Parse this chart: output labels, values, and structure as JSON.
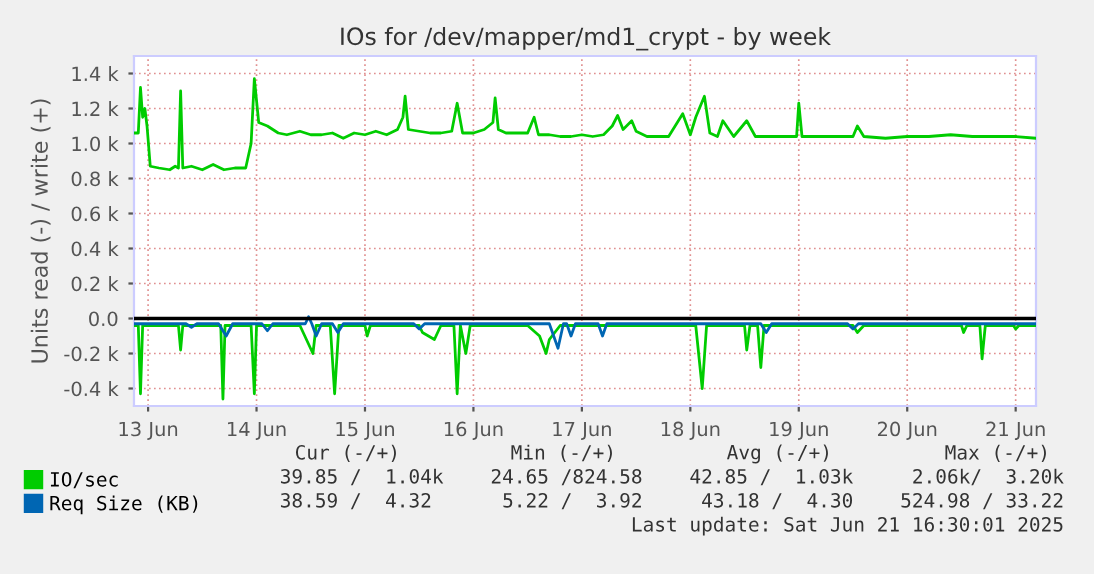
{
  "chart_data": {
    "type": "line",
    "title": "IOs for /dev/mapper/md1_crypt - by week",
    "ylabel": "Units read (-) / write (+)",
    "xlim": [
      "2025-06-13T08:53",
      "2025-06-21T16:30"
    ],
    "ylim": [
      -500,
      1500
    ],
    "xticks": [
      {
        "value": "2025-06-13T12:00",
        "label": "13 Jun"
      },
      {
        "value": "2025-06-14T12:00",
        "label": "14 Jun"
      },
      {
        "value": "2025-06-15T12:00",
        "label": "15 Jun"
      },
      {
        "value": "2025-06-16T12:00",
        "label": "16 Jun"
      },
      {
        "value": "2025-06-17T12:00",
        "label": "17 Jun"
      },
      {
        "value": "2025-06-18T12:00",
        "label": "18 Jun"
      },
      {
        "value": "2025-06-19T12:00",
        "label": "19 Jun"
      },
      {
        "value": "2025-06-20T12:00",
        "label": "20 Jun"
      },
      {
        "value": "2025-06-21T12:00",
        "label": "21 Jun"
      }
    ],
    "yticks": [
      {
        "value": -400,
        "label": "-0.4 k"
      },
      {
        "value": -200,
        "label": "-0.2 k"
      },
      {
        "value": 0,
        "label": "0.0"
      },
      {
        "value": 200,
        "label": "0.2 k"
      },
      {
        "value": 400,
        "label": "0.4 k"
      },
      {
        "value": 600,
        "label": "0.6 k"
      },
      {
        "value": 800,
        "label": "0.8 k"
      },
      {
        "value": 1000,
        "label": "1.0 k"
      },
      {
        "value": 1200,
        "label": "1.2 k"
      },
      {
        "value": 1400,
        "label": "1.4 k"
      }
    ],
    "grid": true,
    "legend": "bottom left",
    "marker": "none",
    "line_style": "solid",
    "ref_lines": [
      {
        "axis": "y",
        "value": 0,
        "color": "#000000"
      }
    ],
    "series": [
      {
        "name": "IO/sec",
        "color": "#00cc00",
        "x": [
          "2025-06-13T08:53",
          "2025-06-13T09:50",
          "2025-06-13T10:19",
          "2025-06-13T10:48",
          "2025-06-13T11:17",
          "2025-06-13T11:46",
          "2025-06-13T12:29",
          "2025-06-13T14:24",
          "2025-06-13T16:48",
          "2025-06-13T18:00",
          "2025-06-13T18:43",
          "2025-06-13T19:12",
          "2025-06-13T19:41",
          "2025-06-13T21:36",
          "2025-06-14T00:00",
          "2025-06-14T02:24",
          "2025-06-14T04:48",
          "2025-06-14T07:12",
          "2025-06-14T09:36",
          "2025-06-14T10:48",
          "2025-06-14T11:31",
          "2025-06-14T12:29",
          "2025-06-14T14:24",
          "2025-06-14T16:48",
          "2025-06-14T18:43",
          "2025-06-14T21:36",
          "2025-06-15T00:00",
          "2025-06-15T02:24",
          "2025-06-15T04:48",
          "2025-06-15T07:12",
          "2025-06-15T09:36",
          "2025-06-15T12:00",
          "2025-06-15T14:24",
          "2025-06-15T16:48",
          "2025-06-15T19:12",
          "2025-06-15T20:24",
          "2025-06-15T20:53",
          "2025-06-15T21:36",
          "2025-06-16T00:00",
          "2025-06-16T02:24",
          "2025-06-16T04:48",
          "2025-06-16T07:12",
          "2025-06-16T08:24",
          "2025-06-16T09:36",
          "2025-06-16T12:00",
          "2025-06-16T14:24",
          "2025-06-16T16:19",
          "2025-06-16T16:48",
          "2025-06-16T17:31",
          "2025-06-16T19:12",
          "2025-06-16T21:36",
          "2025-06-17T00:00",
          "2025-06-17T01:26",
          "2025-06-17T02:24",
          "2025-06-17T04:48",
          "2025-06-17T07:12",
          "2025-06-17T09:36",
          "2025-06-17T12:00",
          "2025-06-17T14:24",
          "2025-06-17T16:48",
          "2025-06-17T18:43",
          "2025-06-17T19:55",
          "2025-06-17T21:07",
          "2025-06-17T23:02",
          "2025-06-18T00:00",
          "2025-06-18T02:24",
          "2025-06-18T04:48",
          "2025-06-18T07:12",
          "2025-06-18T10:19",
          "2025-06-18T12:00",
          "2025-06-18T13:12",
          "2025-06-18T15:07",
          "2025-06-18T16:19",
          "2025-06-18T18:00",
          "2025-06-18T19:12",
          "2025-06-18T21:36",
          "2025-06-19T00:29",
          "2025-06-19T02:24",
          "2025-06-19T04:48",
          "2025-06-19T07:12",
          "2025-06-19T09:36",
          "2025-06-19T11:31",
          "2025-06-19T12:00",
          "2025-06-19T12:43",
          "2025-06-19T14:24",
          "2025-06-19T19:12",
          "2025-06-20T00:00",
          "2025-06-20T00:58",
          "2025-06-20T02:24",
          "2025-06-20T07:12",
          "2025-06-20T12:00",
          "2025-06-20T16:48",
          "2025-06-20T21:36",
          "2025-06-21T02:24",
          "2025-06-21T07:12",
          "2025-06-21T12:00",
          "2025-06-21T16:30"
        ],
        "values": [
          1060,
          1060,
          1320,
          1150,
          1200,
          1100,
          870,
          860,
          850,
          870,
          860,
          1300,
          860,
          870,
          850,
          880,
          850,
          860,
          860,
          1000,
          1370,
          1120,
          1100,
          1060,
          1050,
          1070,
          1050,
          1050,
          1060,
          1030,
          1060,
          1050,
          1070,
          1050,
          1080,
          1150,
          1270,
          1080,
          1070,
          1060,
          1060,
          1070,
          1230,
          1060,
          1060,
          1080,
          1120,
          1260,
          1080,
          1060,
          1060,
          1060,
          1150,
          1050,
          1050,
          1040,
          1040,
          1050,
          1040,
          1050,
          1100,
          1160,
          1080,
          1130,
          1070,
          1040,
          1040,
          1040,
          1170,
          1050,
          1150,
          1270,
          1060,
          1040,
          1130,
          1040,
          1130,
          1040,
          1040,
          1040,
          1040,
          1040,
          1230,
          1040,
          1040,
          1040,
          1040,
          1100,
          1040,
          1030,
          1040,
          1040,
          1050,
          1040,
          1040,
          1040,
          1030
        ]
      },
      {
        "color": "#00cc00",
        "x": [
          "2025-06-13T08:53",
          "2025-06-13T09:50",
          "2025-06-13T10:19",
          "2025-06-13T10:48",
          "2025-06-13T16:48",
          "2025-06-13T18:43",
          "2025-06-13T19:12",
          "2025-06-13T19:41",
          "2025-06-14T02:24",
          "2025-06-14T04:05",
          "2025-06-14T04:34",
          "2025-06-14T05:02",
          "2025-06-14T10:48",
          "2025-06-14T11:31",
          "2025-06-14T12:00",
          "2025-06-14T21:36",
          "2025-06-15T00:29",
          "2025-06-15T01:12",
          "2025-06-15T04:19",
          "2025-06-15T05:17",
          "2025-06-15T06:14",
          "2025-06-15T12:00",
          "2025-06-15T12:29",
          "2025-06-15T13:12",
          "2025-06-16T00:00",
          "2025-06-16T00:43",
          "2025-06-16T03:22",
          "2025-06-16T04:48",
          "2025-06-16T07:41",
          "2025-06-16T08:24",
          "2025-06-16T09:07",
          "2025-06-16T10:19",
          "2025-06-16T11:17",
          "2025-06-17T00:00",
          "2025-06-17T02:38",
          "2025-06-17T04:05",
          "2025-06-17T04:48",
          "2025-06-17T07:12",
          "2025-06-18T13:12",
          "2025-06-18T14:38",
          "2025-06-18T15:36",
          "2025-06-19T00:00",
          "2025-06-19T00:29",
          "2025-06-19T01:12",
          "2025-06-19T02:53",
          "2025-06-19T03:36",
          "2025-06-19T04:19",
          "2025-06-20T00:00",
          "2025-06-20T00:58",
          "2025-06-20T02:24",
          "2025-06-21T00:00",
          "2025-06-21T00:29",
          "2025-06-21T01:12",
          "2025-06-21T04:05",
          "2025-06-21T04:34",
          "2025-06-21T05:17",
          "2025-06-21T11:31",
          "2025-06-21T12:00",
          "2025-06-21T12:43",
          "2025-06-21T16:30"
        ],
        "values": [
          -40,
          -40,
          -430,
          -40,
          -40,
          -40,
          -180,
          -40,
          -40,
          -40,
          -460,
          -40,
          -40,
          -430,
          -40,
          -40,
          -200,
          -40,
          -40,
          -430,
          -40,
          -40,
          -100,
          -40,
          -40,
          -80,
          -120,
          -40,
          -40,
          -430,
          -40,
          -200,
          -40,
          -40,
          -100,
          -200,
          -120,
          -40,
          -40,
          -400,
          -40,
          -40,
          -180,
          -40,
          -40,
          -280,
          -40,
          -40,
          -80,
          -40,
          -40,
          -80,
          -40,
          -40,
          -230,
          -40,
          -40,
          -60,
          -40,
          -40
        ]
      },
      {
        "name": "Req Size (KB)",
        "color": "#0066b3",
        "x": [
          "2025-06-13T08:53",
          "2025-06-13T20:24",
          "2025-06-13T21:36",
          "2025-06-13T22:48",
          "2025-06-14T03:36",
          "2025-06-14T05:17",
          "2025-06-14T06:43",
          "2025-06-14T13:12",
          "2025-06-14T14:24",
          "2025-06-14T15:36",
          "2025-06-14T22:48",
          "2025-06-14T23:31",
          "2025-06-15T00:14",
          "2025-06-15T01:12",
          "2025-06-15T02:24",
          "2025-06-15T04:48",
          "2025-06-15T06:00",
          "2025-06-15T07:12",
          "2025-06-15T22:48",
          "2025-06-16T00:00",
          "2025-06-16T01:12",
          "2025-06-17T04:48",
          "2025-06-17T06:43",
          "2025-06-17T07:55",
          "2025-06-17T08:38",
          "2025-06-17T09:36",
          "2025-06-17T10:34",
          "2025-06-17T15:36",
          "2025-06-17T16:34",
          "2025-06-17T17:31",
          "2025-06-19T03:36",
          "2025-06-19T04:48",
          "2025-06-19T06:00",
          "2025-06-19T22:48",
          "2025-06-20T00:00",
          "2025-06-20T01:12",
          "2025-06-21T16:30"
        ],
        "values": [
          -30,
          -30,
          -50,
          -30,
          -30,
          -100,
          -30,
          -30,
          -70,
          -30,
          -30,
          10,
          -30,
          -100,
          -30,
          -30,
          -80,
          -30,
          -30,
          -60,
          -30,
          -30,
          -170,
          -30,
          -30,
          -100,
          -30,
          -30,
          -100,
          -30,
          -30,
          -80,
          -30,
          -30,
          -60,
          -30,
          -30
        ]
      }
    ],
    "annotations": [
      "Cur (-/+)",
      "Min (-/+)",
      "Avg (-/+)",
      "Max (-/+)",
      "39.85 /  1.04k    24.65 /824.58    42.85 /  1.03k     2.06k/  3.20k",
      "38.59 /  4.32      5.22 /  3.92     43.18 /  4.30    524.98 / 33.22",
      "Last update: Sat Jun 21 16:30:01 2025"
    ]
  }
}
